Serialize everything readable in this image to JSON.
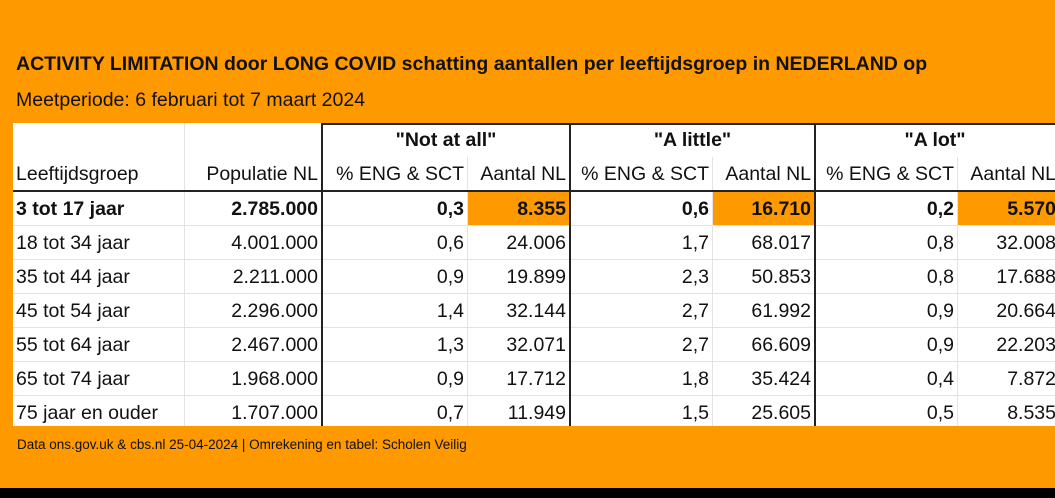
{
  "title": "ACTIVITY LIMITATION door LONG COVID schatting aantallen per leeftijdsgroep in NEDERLAND op",
  "subtitle": "Meetperiode: 6 februari tot 7 maart 2024",
  "groups": [
    "\"Not at all\"",
    "\"A little\"",
    "\"A lot\""
  ],
  "headers": [
    "Leeftijdsgroep",
    "Populatie NL",
    "% ENG & SCT",
    "Aantal NL",
    "% ENG & SCT",
    "Aantal NL",
    "% ENG & SCT",
    "Aantal NL"
  ],
  "rows": [
    [
      "3 tot 17 jaar",
      "2.785.000",
      "0,3",
      "8.355",
      "0,6",
      "16.710",
      "0,2",
      "5.570"
    ],
    [
      "18 tot 34 jaar",
      "4.001.000",
      "0,6",
      "24.006",
      "1,7",
      "68.017",
      "0,8",
      "32.008"
    ],
    [
      "35 tot 44 jaar",
      "2.211.000",
      "0,9",
      "19.899",
      "2,3",
      "50.853",
      "0,8",
      "17.688"
    ],
    [
      "45 tot 54 jaar",
      "2.296.000",
      "1,4",
      "32.144",
      "2,7",
      "61.992",
      "0,9",
      "20.664"
    ],
    [
      "55 tot 64 jaar",
      "2.467.000",
      "1,3",
      "32.071",
      "2,7",
      "66.609",
      "0,9",
      "22.203"
    ],
    [
      "65 tot 74 jaar",
      "1.968.000",
      "0,9",
      "17.712",
      "1,8",
      "35.424",
      "0,4",
      "7.872"
    ],
    [
      "75 jaar en ouder",
      "1.707.000",
      "0,7",
      "11.949",
      "1,5",
      "25.605",
      "0,5",
      "8.535"
    ]
  ],
  "footer": "Data ons.gov.uk & cbs.nl 25-04-2024 | Omrekening en tabel: Scholen Veilig",
  "colors": {
    "background": "#ff9900",
    "highlight": "#ff9900",
    "table": "#ffffff"
  }
}
